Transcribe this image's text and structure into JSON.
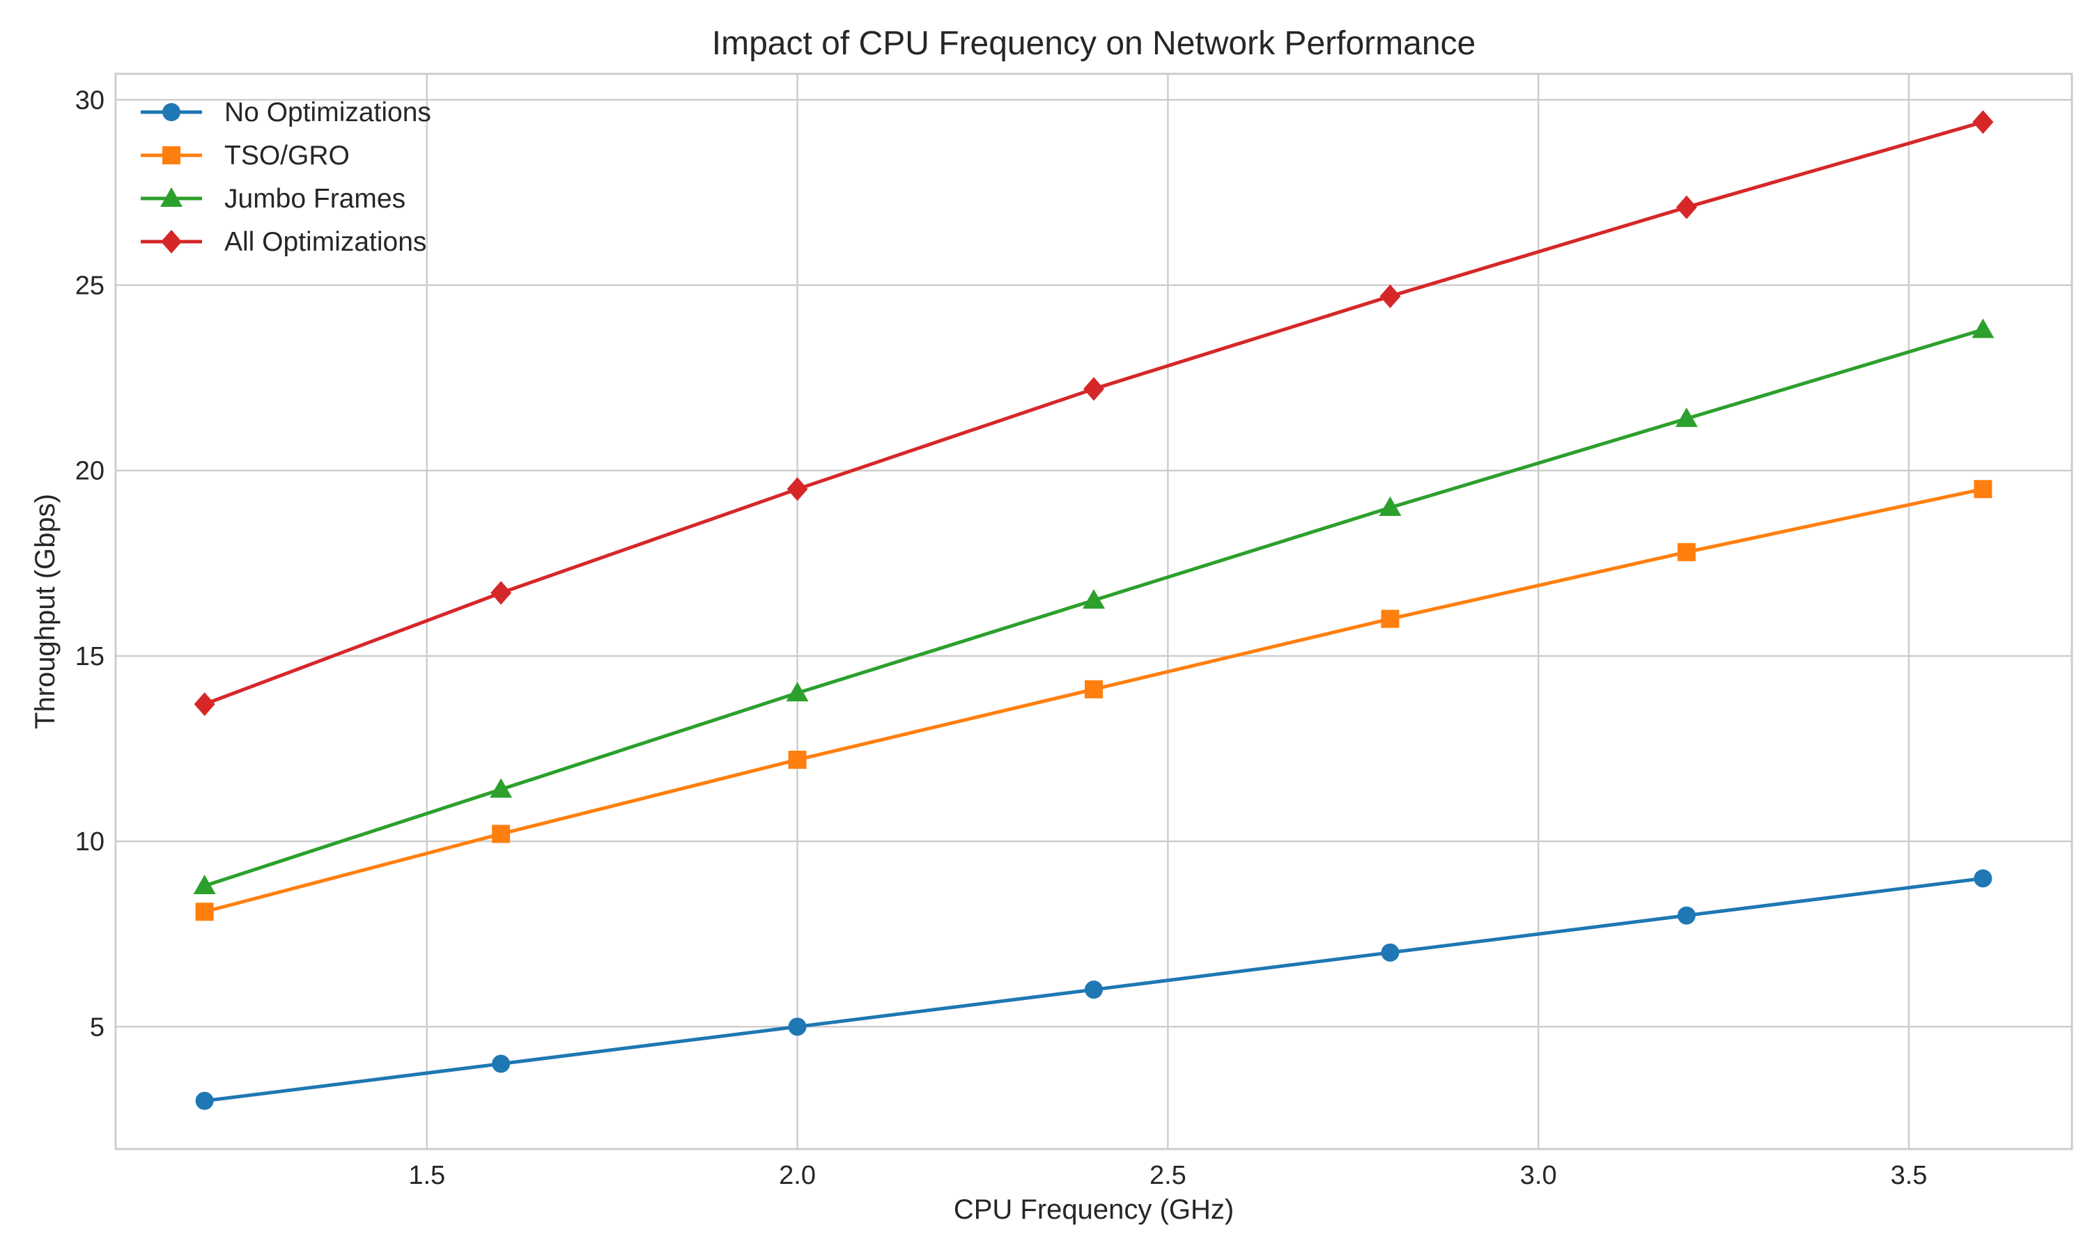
{
  "chart_data": {
    "type": "line",
    "title": "Impact of CPU Frequency on Network Performance",
    "xlabel": "CPU Frequency (GHz)",
    "ylabel": "Throughput (Gbps)",
    "xlim": [
      1.08,
      3.72
    ],
    "ylim": [
      1.7,
      30.7
    ],
    "x": [
      1.2,
      1.6,
      2.0,
      2.4,
      2.8,
      3.2,
      3.6
    ],
    "xticks": [
      1.5,
      2.0,
      2.5,
      3.0,
      3.5
    ],
    "xtick_labels": [
      "1.5",
      "2.0",
      "2.5",
      "3.0",
      "3.5"
    ],
    "yticks": [
      5,
      10,
      15,
      20,
      25,
      30
    ],
    "ytick_labels": [
      "5",
      "10",
      "15",
      "20",
      "25",
      "30"
    ],
    "grid": true,
    "legend_position": "top-left",
    "series": [
      {
        "name": "No Optimizations",
        "color": "#1f77b4",
        "marker": "circle",
        "values": [
          3.0,
          4.0,
          5.0,
          6.0,
          7.0,
          8.0,
          9.0
        ]
      },
      {
        "name": "TSO/GRO",
        "color": "#ff7f0e",
        "marker": "square",
        "values": [
          8.1,
          10.2,
          12.2,
          14.1,
          16.0,
          17.8,
          19.5
        ]
      },
      {
        "name": "Jumbo Frames",
        "color": "#2ca02c",
        "marker": "triangle",
        "values": [
          8.8,
          11.4,
          14.0,
          16.5,
          19.0,
          21.4,
          23.8
        ]
      },
      {
        "name": "All Optimizations",
        "color": "#d62728",
        "marker": "diamond",
        "values": [
          13.7,
          16.7,
          19.5,
          22.2,
          24.7,
          27.1,
          29.4
        ]
      }
    ]
  }
}
